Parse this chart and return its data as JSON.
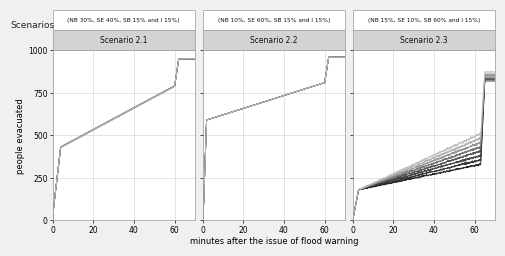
{
  "title": "Scenarios",
  "xlabel": "minutes after the issue of flood warning",
  "ylabel": "people evacuated",
  "ylim": [
    0,
    1000
  ],
  "xlim": [
    0,
    70
  ],
  "yticks": [
    0,
    250,
    500,
    750,
    1000
  ],
  "xticks": [
    0,
    20,
    40,
    60
  ],
  "panels": [
    {
      "label": "Scenario 2.1",
      "sublabel": "(NB 30%, SE 40%, SB 15% and I 15%)"
    },
    {
      "label": "Scenario 2.2",
      "sublabel": "(NB 10%, SE 60%, SB 15% and I 15%)"
    },
    {
      "label": "Scenario 2.3",
      "sublabel": "(NB 15%, SE 10%, SB 60% and I 15%)"
    }
  ],
  "bg_color": "#f0f0f0",
  "panel_bg": "#ffffff",
  "header_bg": "#d3d3d3",
  "subheader_bg": "#ffffff",
  "grid_color": "#d8d8d8",
  "line_colors": [
    "#111111",
    "#222222",
    "#333333",
    "#444444",
    "#666666",
    "#888888",
    "#aaaaaa",
    "#bbbbbb"
  ],
  "n_lines": 8
}
